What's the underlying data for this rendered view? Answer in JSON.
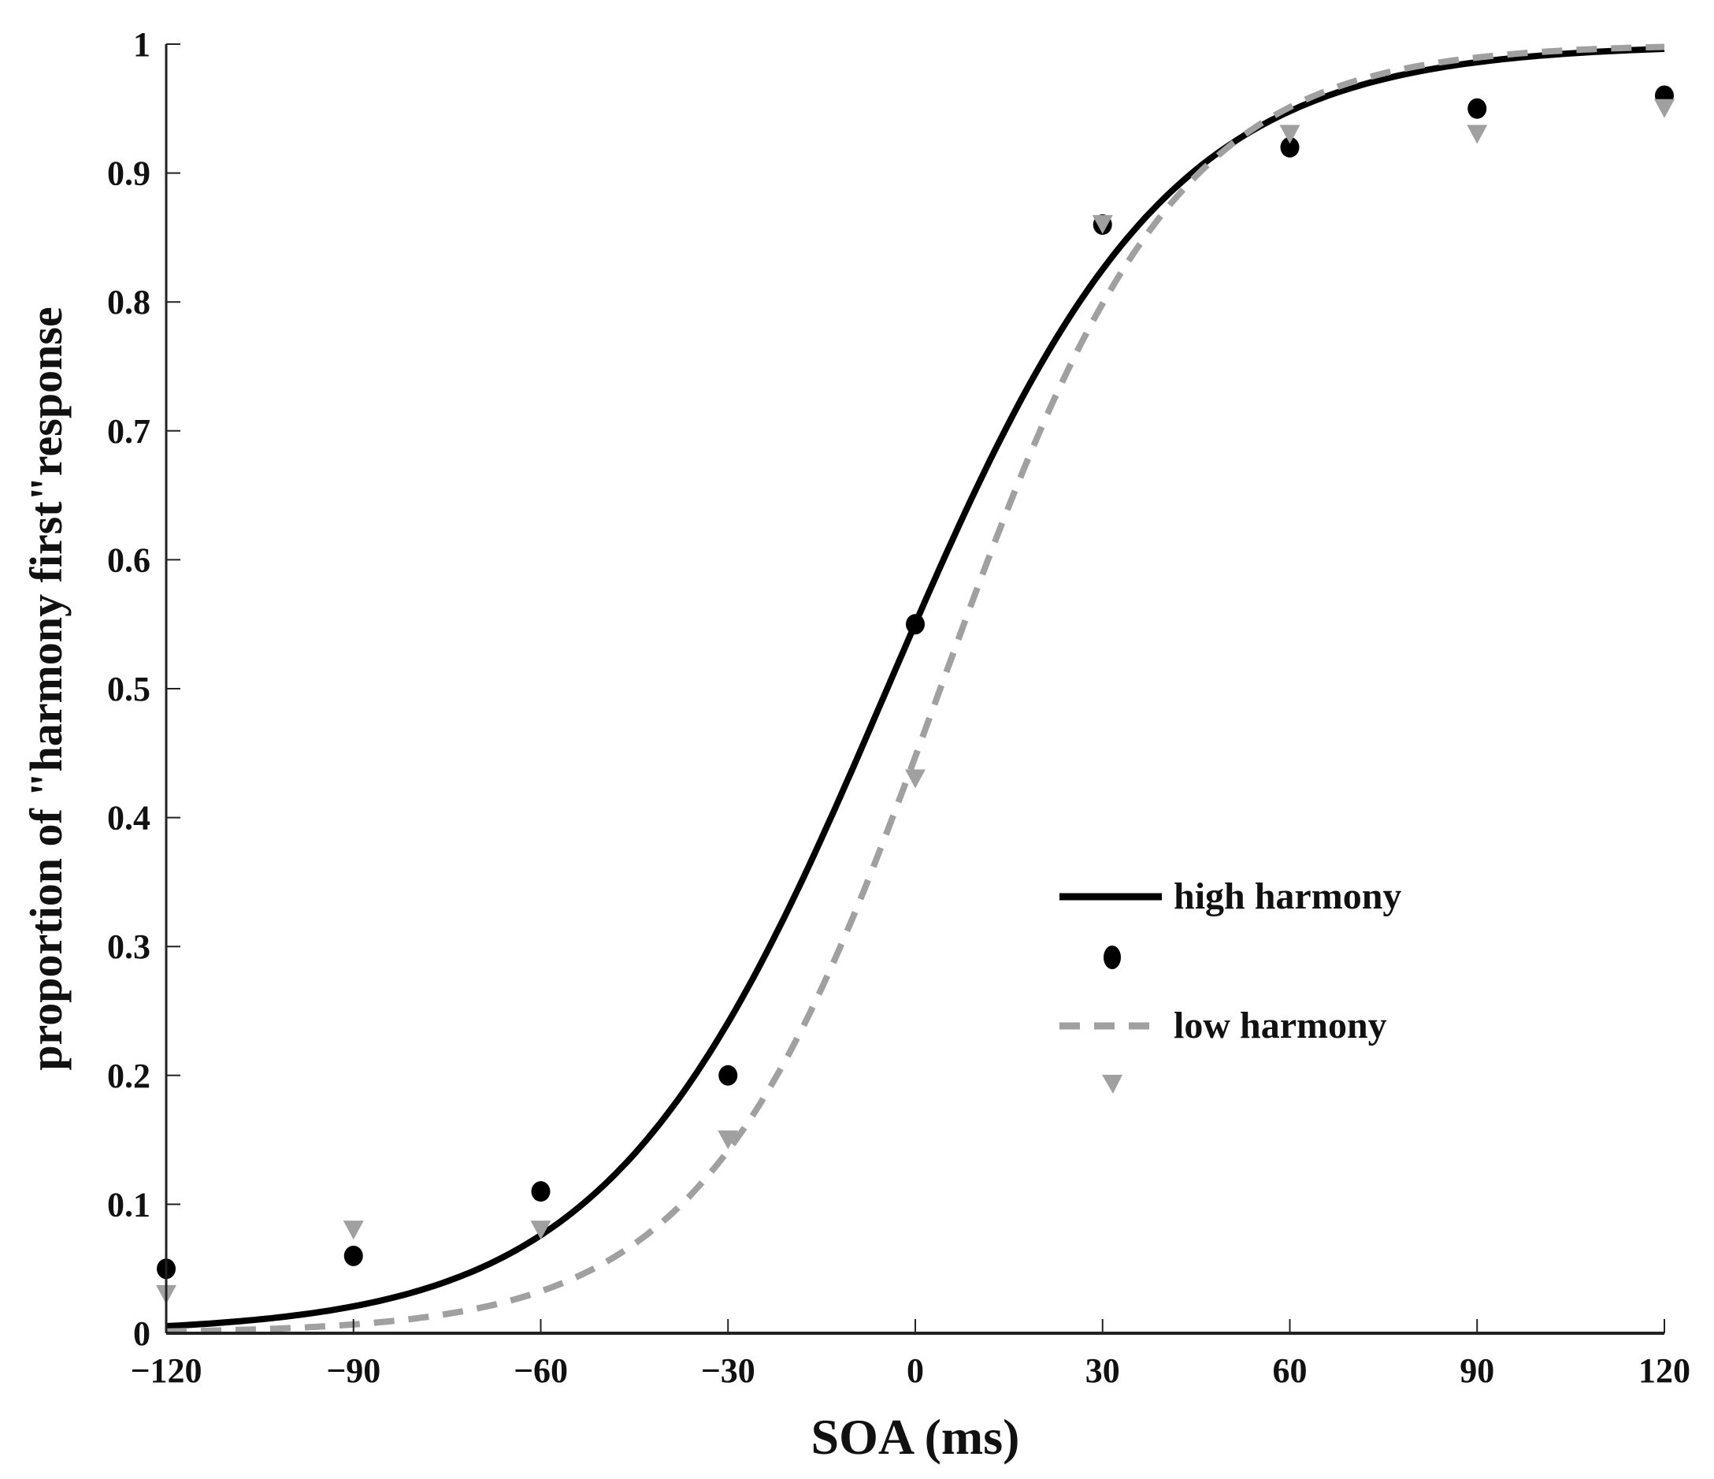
{
  "chart_data": {
    "type": "scatter",
    "title": "",
    "xlabel": "SOA (ms)",
    "ylabel": "proportion of \"harmony first\"response",
    "xlim": [
      -120,
      120
    ],
    "ylim": [
      0,
      1
    ],
    "xticks": [
      "−120",
      "−90",
      "−60",
      "−30",
      "0",
      "30",
      "60",
      "90",
      "120"
    ],
    "xtick_values": [
      -120,
      -90,
      -60,
      -30,
      0,
      30,
      60,
      90,
      120
    ],
    "yticks": [
      "0",
      "0.1",
      "0.2",
      "0.3",
      "0.4",
      "0.5",
      "0.6",
      "0.7",
      "0.8",
      "0.9",
      "1"
    ],
    "ytick_values": [
      0,
      0.1,
      0.2,
      0.3,
      0.4,
      0.5,
      0.6,
      0.7,
      0.8,
      0.9,
      1
    ],
    "grid": false,
    "legend_position": "center-right",
    "x": [
      -120,
      -90,
      -60,
      -30,
      0,
      30,
      60,
      90,
      120
    ],
    "series": [
      {
        "name": "high harmony",
        "color": "#000000",
        "marker": "circle",
        "line": "solid",
        "values": [
          0.05,
          0.06,
          0.11,
          0.2,
          0.55,
          0.86,
          0.92,
          0.95,
          0.96
        ],
        "fit": {
          "type": "logistic",
          "midpoint": -4.5,
          "slope": 0.045
        }
      },
      {
        "name": "low harmony",
        "color": "#a0a0a0",
        "marker": "triangle-down",
        "line": "dashed",
        "values": [
          0.03,
          0.08,
          0.08,
          0.15,
          0.43,
          0.86,
          0.93,
          0.93,
          0.95
        ],
        "fit": {
          "type": "logistic",
          "midpoint": 4,
          "slope": 0.053
        }
      }
    ]
  }
}
